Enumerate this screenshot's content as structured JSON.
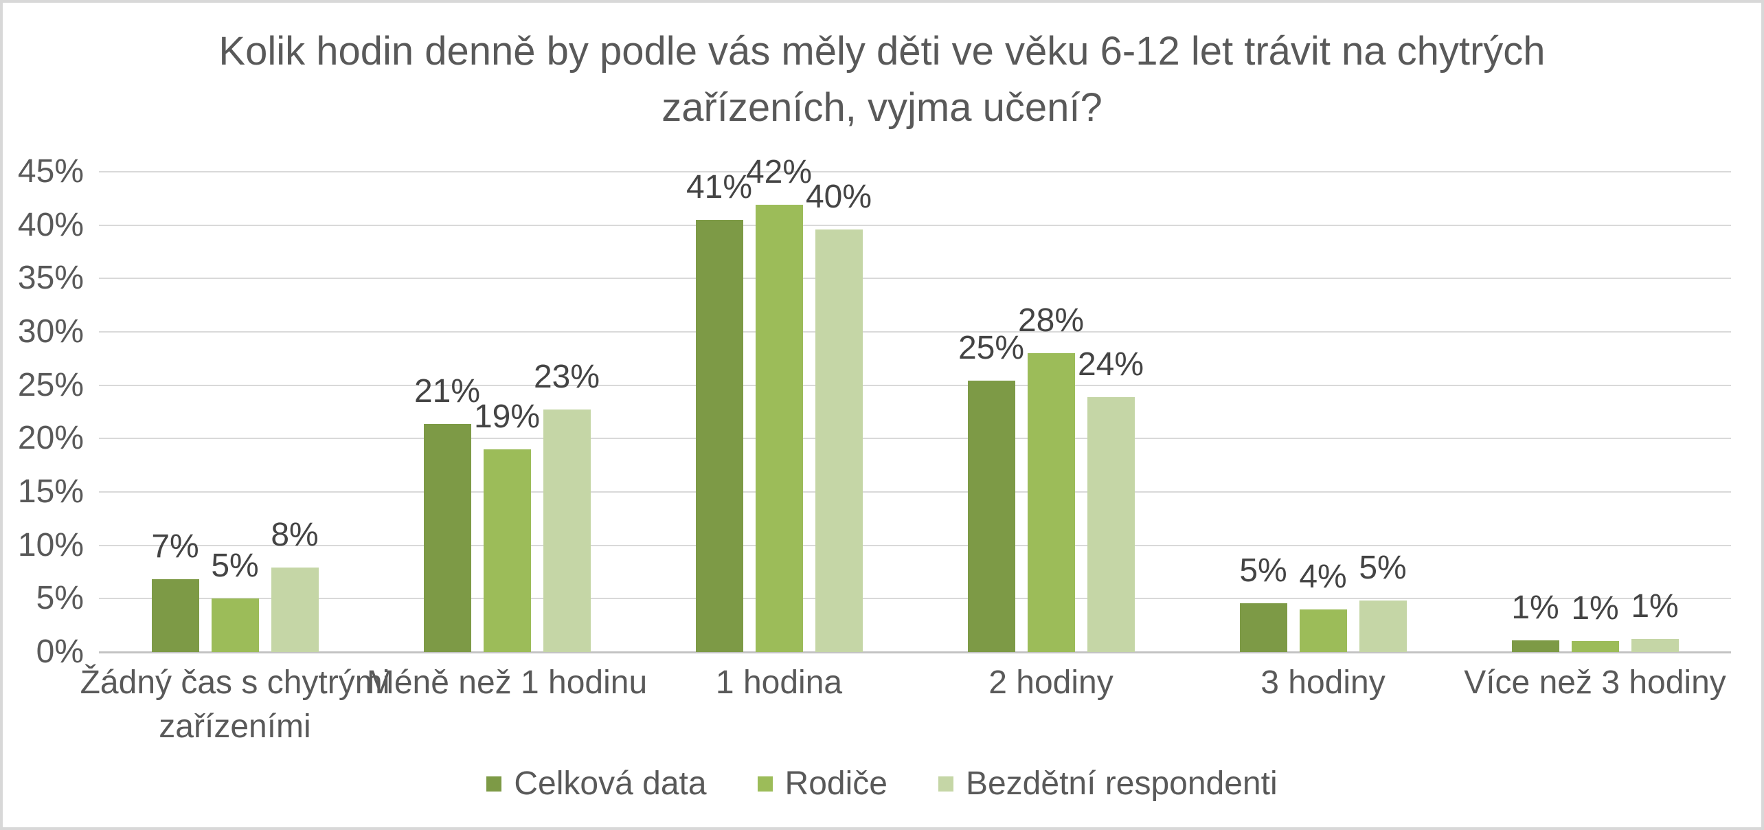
{
  "title": {
    "full": "Kolik hodin denně by podle vás měly děti ve věku 6-12 let trávit na chytrých zařízeních, vyjma učení?",
    "line1": "Kolik hodin denně by podle vás měly děti ve věku 6-12 let trávit na chytrých",
    "line2": "zařízeních, vyjma učení?"
  },
  "chart_data": {
    "type": "bar",
    "title": "Kolik hodin denně by podle vás měly děti ve věku 6-12 let trávit na chytrých zařízeních, vyjma učení?",
    "categories": [
      "Žádný čas s chytrými zařízeními",
      "Méně než 1 hodinu",
      "1 hodina",
      "2 hodiny",
      "3 hodiny",
      "Více než 3 hodiny"
    ],
    "category_lines": [
      [
        "Žádný čas s chytrými",
        "zařízeními"
      ],
      [
        "Méně než 1 hodinu"
      ],
      [
        "1 hodina"
      ],
      [
        "2 hodiny"
      ],
      [
        "3 hodiny"
      ],
      [
        "Více než 3 hodiny"
      ]
    ],
    "series": [
      {
        "name": "Celková data",
        "color": "#7d9a46",
        "values": [
          7,
          21,
          41,
          25,
          5,
          1
        ],
        "values_exact": [
          6.8,
          21.4,
          40.5,
          25.4,
          4.6,
          1.1
        ],
        "labels": [
          "7%",
          "21%",
          "41%",
          "25%",
          "5%",
          "1%"
        ]
      },
      {
        "name": "Rodiče",
        "color": "#9cbc59",
        "values": [
          5,
          19,
          42,
          28,
          4,
          1
        ],
        "values_exact": [
          5.0,
          19.0,
          41.9,
          28.0,
          4.0,
          1.0
        ],
        "labels": [
          "5%",
          "19%",
          "42%",
          "28%",
          "4%",
          "1%"
        ]
      },
      {
        "name": "Bezdětní respondenti",
        "color": "#c5d6a6",
        "values": [
          8,
          23,
          40,
          24,
          5,
          1
        ],
        "values_exact": [
          7.9,
          22.7,
          39.6,
          23.9,
          4.8,
          1.2
        ],
        "labels": [
          "8%",
          "23%",
          "40%",
          "24%",
          "5%",
          "1%"
        ]
      }
    ],
    "y_axis": {
      "min": 0,
      "max": 45,
      "step": 5,
      "tick_labels": [
        "0%",
        "5%",
        "10%",
        "15%",
        "20%",
        "25%",
        "30%",
        "35%",
        "40%",
        "45%"
      ]
    },
    "grid": true,
    "legend_position": "bottom"
  },
  "legend": {
    "items": [
      "Celková data",
      "Rodiče",
      "Bezdětní respondenti"
    ]
  },
  "colors": {
    "background": "#ffffff",
    "frame_border": "#d8d8d8",
    "gridline": "#d9d9d9",
    "axis_line": "#c3c3c3",
    "text": "#595959",
    "data_label_text": "#444444"
  }
}
